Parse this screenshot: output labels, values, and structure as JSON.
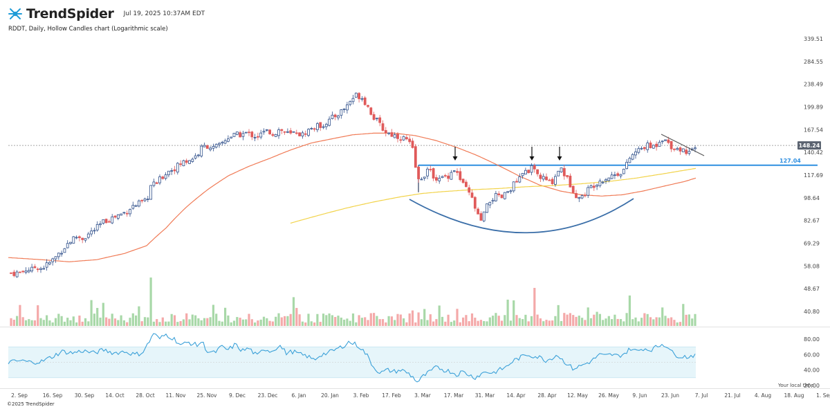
{
  "header": {
    "brand": "TrendSpider",
    "timestamp": "Jul 19, 2025 10:37AM EDT",
    "subtitle": "RDDT, Daily, Hollow Candles chart (Logarithmic scale)",
    "logo_icon": "trendspider-logo-icon"
  },
  "footer": {
    "copyright": "©2025 TrendSpider",
    "local_time_label": "Your local time"
  },
  "colors": {
    "up": "#2f4f8a",
    "down": "#e05a5a",
    "vol_up": "#a8d8a8",
    "vol_down": "#f4a9a9",
    "sma_short": "#f07a55",
    "sma_long": "#f2d34a",
    "support": "#2f8fe0",
    "rsi": "#3aa0d8",
    "rsi_band": "#e6f5fa",
    "arc": "#3a6ea8"
  },
  "chart_data": {
    "type": "candlestick",
    "symbol": "RDDT",
    "interval": "Daily",
    "scale": "log",
    "price_ticks": [
      339.51,
      284.55,
      238.49,
      199.89,
      167.54,
      140.42,
      117.69,
      98.64,
      82.67,
      69.29,
      58.08,
      48.67,
      40.8
    ],
    "current_price": 148.24,
    "support_level": 127.04,
    "x_labels": [
      "2. Sep",
      "16. Sep",
      "30. Sep",
      "14. Oct",
      "28. Oct",
      "11. Nov",
      "25. Nov",
      "9. Dec",
      "23. Dec",
      "6. Jan",
      "20. Jan",
      "3. Feb",
      "17. Feb",
      "3. Mar",
      "17. Mar",
      "31. Mar",
      "14. Apr",
      "28. Apr",
      "12. May",
      "26. May",
      "9. Jun",
      "23. Jun",
      "7. Jul",
      "21. Jul",
      "4. Aug",
      "18. Aug",
      "1. Sep"
    ],
    "x_label_pos": [
      28,
      76,
      122,
      166,
      210,
      254,
      299,
      343,
      387,
      432,
      477,
      522,
      566,
      611,
      656,
      701,
      746,
      791,
      835,
      880,
      925,
      969,
      1014,
      1059,
      1103,
      1148,
      1192
    ],
    "price_anchors": [
      [
        28,
        55
      ],
      [
        35,
        56
      ],
      [
        40,
        57
      ],
      [
        45,
        56
      ],
      [
        52,
        58
      ],
      [
        60,
        57
      ],
      [
        70,
        59
      ],
      [
        80,
        62
      ],
      [
        90,
        66
      ],
      [
        100,
        70
      ],
      [
        110,
        73
      ],
      [
        120,
        72
      ],
      [
        130,
        75
      ],
      [
        140,
        78
      ],
      [
        150,
        82
      ],
      [
        160,
        84
      ],
      [
        170,
        86
      ],
      [
        180,
        88
      ],
      [
        190,
        92
      ],
      [
        200,
        94
      ],
      [
        212,
        96
      ],
      [
        218,
        108
      ],
      [
        225,
        110
      ],
      [
        232,
        114
      ],
      [
        240,
        120
      ],
      [
        248,
        123
      ],
      [
        256,
        126
      ],
      [
        264,
        130
      ],
      [
        272,
        132
      ],
      [
        280,
        135
      ],
      [
        288,
        140
      ],
      [
        292,
        146
      ],
      [
        300,
        148
      ],
      [
        308,
        145
      ],
      [
        316,
        147
      ],
      [
        322,
        152
      ],
      [
        330,
        158
      ],
      [
        338,
        160
      ],
      [
        346,
        161
      ],
      [
        355,
        163
      ],
      [
        364,
        161
      ],
      [
        372,
        159
      ],
      [
        380,
        163
      ],
      [
        388,
        166
      ],
      [
        396,
        162
      ],
      [
        404,
        168
      ],
      [
        412,
        164
      ],
      [
        420,
        161
      ],
      [
        428,
        165
      ],
      [
        436,
        160
      ],
      [
        444,
        166
      ],
      [
        452,
        170
      ],
      [
        460,
        172
      ],
      [
        468,
        175
      ],
      [
        476,
        180
      ],
      [
        484,
        186
      ],
      [
        492,
        192
      ],
      [
        500,
        200
      ],
      [
        508,
        212
      ],
      [
        516,
        220
      ],
      [
        524,
        215
      ],
      [
        532,
        200
      ],
      [
        540,
        185
      ],
      [
        548,
        175
      ],
      [
        556,
        166
      ],
      [
        564,
        162
      ],
      [
        572,
        160
      ],
      [
        580,
        158
      ],
      [
        588,
        155
      ],
      [
        596,
        145
      ],
      [
        604,
        112
      ],
      [
        610,
        116
      ],
      [
        618,
        122
      ],
      [
        626,
        118
      ],
      [
        634,
        113
      ],
      [
        642,
        116
      ],
      [
        650,
        118
      ],
      [
        656,
        124
      ],
      [
        662,
        118
      ],
      [
        668,
        110
      ],
      [
        676,
        104
      ],
      [
        684,
        96
      ],
      [
        690,
        86
      ],
      [
        696,
        82
      ],
      [
        702,
        90
      ],
      [
        708,
        96
      ],
      [
        716,
        100
      ],
      [
        724,
        98
      ],
      [
        732,
        102
      ],
      [
        740,
        108
      ],
      [
        748,
        112
      ],
      [
        756,
        118
      ],
      [
        762,
        122
      ],
      [
        768,
        124
      ],
      [
        774,
        120
      ],
      [
        780,
        116
      ],
      [
        788,
        114
      ],
      [
        796,
        110
      ],
      [
        804,
        118
      ],
      [
        810,
        126
      ],
      [
        818,
        116
      ],
      [
        826,
        108
      ],
      [
        834,
        100
      ],
      [
        840,
        98
      ],
      [
        848,
        104
      ],
      [
        856,
        108
      ],
      [
        864,
        112
      ],
      [
        872,
        114
      ],
      [
        880,
        116
      ],
      [
        888,
        118
      ],
      [
        896,
        120
      ],
      [
        904,
        124
      ],
      [
        910,
        134
      ],
      [
        918,
        140
      ],
      [
        926,
        144
      ],
      [
        934,
        148
      ],
      [
        942,
        146
      ],
      [
        950,
        150
      ],
      [
        956,
        158
      ],
      [
        962,
        154
      ],
      [
        970,
        148
      ],
      [
        978,
        145
      ],
      [
        986,
        143
      ],
      [
        994,
        142
      ],
      [
        1002,
        141
      ],
      [
        1006,
        145
      ]
    ],
    "sma_short_anchors": [
      [
        12,
        62
      ],
      [
        60,
        61
      ],
      [
        100,
        60
      ],
      [
        140,
        61
      ],
      [
        180,
        64
      ],
      [
        212,
        68
      ],
      [
        240,
        78
      ],
      [
        270,
        92
      ],
      [
        300,
        105
      ],
      [
        330,
        117
      ],
      [
        360,
        126
      ],
      [
        390,
        134
      ],
      [
        420,
        143
      ],
      [
        450,
        151
      ],
      [
        480,
        156
      ],
      [
        510,
        161
      ],
      [
        540,
        163
      ],
      [
        570,
        163
      ],
      [
        600,
        160
      ],
      [
        630,
        154
      ],
      [
        660,
        146
      ],
      [
        690,
        137
      ],
      [
        720,
        127
      ],
      [
        750,
        117
      ],
      [
        780,
        109
      ],
      [
        810,
        104
      ],
      [
        840,
        101
      ],
      [
        870,
        100
      ],
      [
        900,
        101
      ],
      [
        930,
        104
      ],
      [
        960,
        108
      ],
      [
        990,
        112
      ],
      [
        1006,
        115
      ]
    ],
    "sma_long_anchors": [
      [
        420,
        81
      ],
      [
        460,
        86
      ],
      [
        500,
        91
      ],
      [
        540,
        95.5
      ],
      [
        580,
        99.5
      ],
      [
        610,
        102
      ],
      [
        640,
        103.5
      ],
      [
        680,
        105
      ],
      [
        720,
        106
      ],
      [
        760,
        107.5
      ],
      [
        800,
        108.5
      ],
      [
        840,
        110
      ],
      [
        880,
        112
      ],
      [
        920,
        115
      ],
      [
        960,
        119
      ],
      [
        1006,
        124
      ]
    ],
    "rsi": {
      "ticks": [
        80.0,
        60.0,
        40.0,
        20.0
      ],
      "band": [
        30,
        70
      ],
      "mid": 50,
      "anchors": [
        [
          12,
          50
        ],
        [
          30,
          52
        ],
        [
          45,
          50
        ],
        [
          60,
          51
        ],
        [
          75,
          57
        ],
        [
          90,
          64
        ],
        [
          105,
          62
        ],
        [
          120,
          65
        ],
        [
          135,
          62
        ],
        [
          150,
          66
        ],
        [
          165,
          62
        ],
        [
          180,
          64
        ],
        [
          195,
          60
        ],
        [
          205,
          62
        ],
        [
          215,
          75
        ],
        [
          222,
          88
        ],
        [
          230,
          80
        ],
        [
          240,
          86
        ],
        [
          252,
          80
        ],
        [
          262,
          72
        ],
        [
          272,
          76
        ],
        [
          285,
          72
        ],
        [
          292,
          77
        ],
        [
          300,
          64
        ],
        [
          310,
          62
        ],
        [
          320,
          70
        ],
        [
          330,
          66
        ],
        [
          340,
          73
        ],
        [
          350,
          65
        ],
        [
          360,
          68
        ],
        [
          372,
          58
        ],
        [
          382,
          68
        ],
        [
          392,
          64
        ],
        [
          404,
          72
        ],
        [
          414,
          62
        ],
        [
          424,
          64
        ],
        [
          434,
          60
        ],
        [
          444,
          58
        ],
        [
          454,
          53
        ],
        [
          464,
          60
        ],
        [
          474,
          62
        ],
        [
          484,
          66
        ],
        [
          494,
          70
        ],
        [
          504,
          76
        ],
        [
          512,
          74
        ],
        [
          520,
          70
        ],
        [
          530,
          60
        ],
        [
          540,
          44
        ],
        [
          550,
          36
        ],
        [
          560,
          40
        ],
        [
          570,
          38
        ],
        [
          580,
          40
        ],
        [
          590,
          36
        ],
        [
          598,
          30
        ],
        [
          604,
          24
        ],
        [
          612,
          32
        ],
        [
          622,
          38
        ],
        [
          632,
          44
        ],
        [
          642,
          40
        ],
        [
          652,
          38
        ],
        [
          660,
          34
        ],
        [
          668,
          38
        ],
        [
          678,
          34
        ],
        [
          686,
          30
        ],
        [
          694,
          34
        ],
        [
          702,
          38
        ],
        [
          712,
          36
        ],
        [
          722,
          40
        ],
        [
          732,
          44
        ],
        [
          742,
          52
        ],
        [
          752,
          56
        ],
        [
          762,
          60
        ],
        [
          772,
          58
        ],
        [
          782,
          56
        ],
        [
          790,
          52
        ],
        [
          798,
          56
        ],
        [
          806,
          60
        ],
        [
          812,
          54
        ],
        [
          820,
          48
        ],
        [
          828,
          42
        ],
        [
          836,
          44
        ],
        [
          846,
          48
        ],
        [
          856,
          52
        ],
        [
          866,
          60
        ],
        [
          874,
          58
        ],
        [
          884,
          60
        ],
        [
          894,
          58
        ],
        [
          904,
          62
        ],
        [
          912,
          68
        ],
        [
          920,
          64
        ],
        [
          930,
          68
        ],
        [
          940,
          66
        ],
        [
          950,
          70
        ],
        [
          958,
          74
        ],
        [
          966,
          70
        ],
        [
          974,
          60
        ],
        [
          984,
          58
        ],
        [
          994,
          57
        ],
        [
          1006,
          60
        ]
      ]
    }
  }
}
